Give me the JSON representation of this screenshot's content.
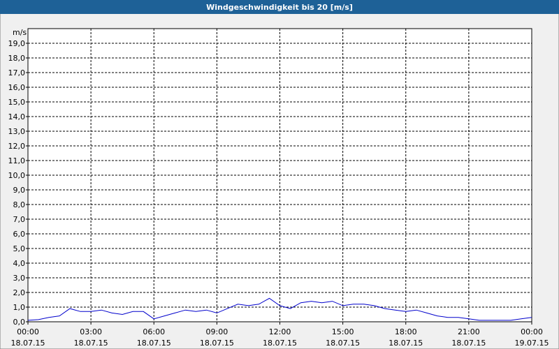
{
  "chart_data": {
    "type": "line",
    "title": "Windgeschwindigkeit bis 20 [m/s]",
    "y_label": "m/s",
    "x": [
      0,
      0.5,
      1,
      1.5,
      2,
      2.5,
      3,
      3.5,
      4,
      4.5,
      5,
      5.5,
      6,
      6.5,
      7,
      7.5,
      8,
      8.5,
      9,
      9.5,
      10,
      10.5,
      11,
      11.5,
      12,
      12.5,
      13,
      13.5,
      14,
      14.5,
      15,
      15.5,
      16,
      16.5,
      17,
      17.5,
      18,
      18.5,
      19,
      19.5,
      20,
      20.5,
      21,
      21.5,
      22,
      22.5,
      23,
      23.5,
      24
    ],
    "series": [
      {
        "name": "Windgeschwindigkeit",
        "color": "#0000cc",
        "values": [
          0.1,
          0.15,
          0.3,
          0.4,
          0.9,
          0.7,
          0.7,
          0.8,
          0.6,
          0.5,
          0.7,
          0.7,
          0.2,
          0.4,
          0.6,
          0.8,
          0.7,
          0.8,
          0.6,
          0.9,
          1.2,
          1.1,
          1.2,
          1.6,
          1.1,
          0.9,
          1.3,
          1.4,
          1.3,
          1.4,
          1.1,
          1.2,
          1.2,
          1.1,
          0.9,
          0.8,
          0.7,
          0.8,
          0.6,
          0.4,
          0.3,
          0.3,
          0.2,
          0.1,
          0.1,
          0.1,
          0.1,
          0.2,
          0.3
        ]
      }
    ],
    "xlim": [
      0,
      24
    ],
    "xticks": [
      {
        "value": 0,
        "label": "00:00 18.07.15"
      },
      {
        "value": 3,
        "label": "03:00 18.07.15"
      },
      {
        "value": 6,
        "label": "06:00 18.07.15"
      },
      {
        "value": 9,
        "label": "09:00 18.07.15"
      },
      {
        "value": 12,
        "label": "12:00 18.07.15"
      },
      {
        "value": 15,
        "label": "15:00 18.07.15"
      },
      {
        "value": 18,
        "label": "18:00 18.07.15"
      },
      {
        "value": 21,
        "label": "21:00 18.07.15"
      },
      {
        "value": 24,
        "label": "00:00 19.07.15"
      }
    ],
    "ylim": [
      0,
      20
    ],
    "yticks": [
      {
        "value": 0,
        "label": "0,0"
      },
      {
        "value": 1,
        "label": "1,0"
      },
      {
        "value": 2,
        "label": "2,0"
      },
      {
        "value": 3,
        "label": "3,0"
      },
      {
        "value": 4,
        "label": "4,0"
      },
      {
        "value": 5,
        "label": "5,0"
      },
      {
        "value": 6,
        "label": "6,0"
      },
      {
        "value": 7,
        "label": "7,0"
      },
      {
        "value": 8,
        "label": "8,0"
      },
      {
        "value": 9,
        "label": "9,0"
      },
      {
        "value": 10,
        "label": "10,0"
      },
      {
        "value": 11,
        "label": "11,0"
      },
      {
        "value": 12,
        "label": "12,0"
      },
      {
        "value": 13,
        "label": "13,0"
      },
      {
        "value": 14,
        "label": "14,0"
      },
      {
        "value": 15,
        "label": "15,0"
      },
      {
        "value": 16,
        "label": "16,0"
      },
      {
        "value": 17,
        "label": "17,0"
      },
      {
        "value": 18,
        "label": "18,0"
      },
      {
        "value": 19,
        "label": "19,0"
      }
    ],
    "grid": true
  }
}
